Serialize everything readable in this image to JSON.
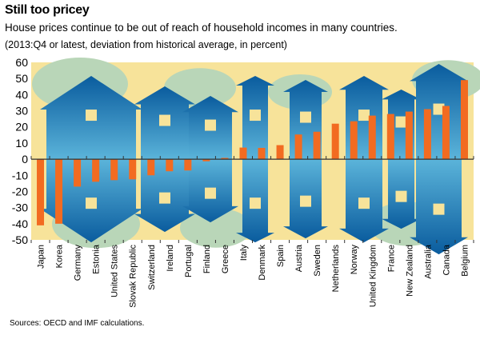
{
  "title": "Still too pricey",
  "subtitle": "House prices continue to be out of reach of household incomes in many countries.",
  "unit_note": "(2013:Q4 or latest, deviation from historical average, in percent)",
  "source": "Sources: OECD and IMF calculations.",
  "colors": {
    "bar": "#F26B21",
    "plot_background": "#F7E39A",
    "house": "#2E7FB8",
    "tree": "#B9D6B8"
  },
  "chart_data": {
    "type": "bar",
    "categories": [
      "Japan",
      "Korea",
      "Germany",
      "Estonia",
      "United States",
      "Slovak Republic",
      "Switzerland",
      "Ireland",
      "Portugal",
      "Finland",
      "Greece",
      "Italy",
      "Denmark",
      "Spain",
      "Austria",
      "Sweden",
      "Netherlands",
      "Norway",
      "United Kingdom",
      "France",
      "New Zealand",
      "Australia",
      "Canada",
      "Belgium"
    ],
    "values": [
      -41,
      -40,
      -17,
      -14,
      -13,
      -12.5,
      -10,
      -7.5,
      -7,
      -1.3,
      0.8,
      7.2,
      7,
      8.7,
      15.3,
      17,
      22,
      23.5,
      27,
      28,
      29.5,
      31,
      33,
      49
    ],
    "ylim": [
      -50,
      60
    ],
    "yticks": [
      60,
      50,
      40,
      30,
      20,
      10,
      0,
      -10,
      -20,
      -30,
      -40,
      -50
    ],
    "grid": false,
    "xlabel": "",
    "ylabel": ""
  }
}
